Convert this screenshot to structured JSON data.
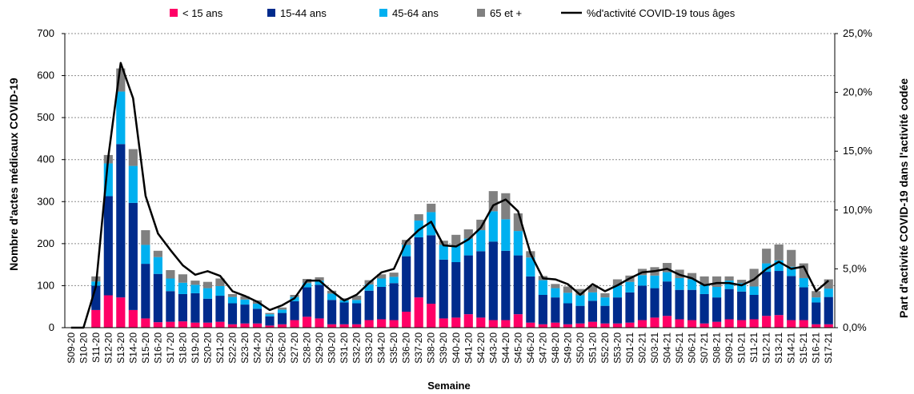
{
  "chart_data": {
    "type": "bar",
    "stacked": true,
    "xlabel": "Semaine",
    "ylabel": "Nombre d'actes médicaux COVID-19",
    "y2label": "Part d'activité COVID-19 dans l'activité codée",
    "ylim": [
      0,
      700
    ],
    "yticks": [
      0,
      100,
      200,
      300,
      400,
      500,
      600,
      700
    ],
    "y2lim": [
      0,
      25
    ],
    "y2ticks": [
      "0,0%",
      "5,0%",
      "10,0%",
      "15,0%",
      "20,0%",
      "25,0%"
    ],
    "grid": true,
    "legend_position": "top",
    "categories": [
      "S09-20",
      "S10-20",
      "S11-20",
      "S12-20",
      "S13-20",
      "S14-20",
      "S15-20",
      "S16-20",
      "S17-20",
      "S18-20",
      "S19-20",
      "S20-20",
      "S21-20",
      "S22-20",
      "S23-20",
      "S24-20",
      "S25-20",
      "S26-20",
      "S27-20",
      "S28-20",
      "S29-20",
      "S30-20",
      "S31-20",
      "S32-20",
      "S33-20",
      "S34-20",
      "S35-20",
      "S36-20",
      "S37-20",
      "S38-20",
      "S39-20",
      "S40-20",
      "S41-20",
      "S42-20",
      "S43-20",
      "S44-20",
      "S45-20",
      "S46-20",
      "S47-20",
      "S48-20",
      "S49-20",
      "S50-20",
      "S51-20",
      "S52-20",
      "S53-20",
      "S01-21",
      "S02-21",
      "S03-21",
      "S04-21",
      "S05-21",
      "S06-21",
      "S07-21",
      "S08-21",
      "S09-21",
      "S10-21",
      "S11-21",
      "S12-21",
      "S13-21",
      "S14-21",
      "S15-21",
      "S16-21",
      "S17-21"
    ],
    "series": [
      {
        "name": "< 15 ans",
        "color": "#ff0066",
        "values": [
          0,
          0,
          42,
          77,
          72,
          42,
          22,
          13,
          14,
          15,
          12,
          12,
          14,
          8,
          10,
          10,
          5,
          8,
          18,
          26,
          22,
          8,
          8,
          8,
          18,
          20,
          18,
          38,
          72,
          57,
          22,
          24,
          32,
          24,
          18,
          18,
          32,
          12,
          8,
          12,
          8,
          10,
          14,
          10,
          10,
          12,
          18,
          24,
          28,
          20,
          18,
          10,
          14,
          20,
          18,
          20,
          28,
          30,
          18,
          18,
          8,
          8
        ]
      },
      {
        "name": "15-44 ans",
        "color": "#002b8c",
        "values": [
          0,
          0,
          58,
          236,
          365,
          255,
          130,
          115,
          73,
          65,
          70,
          57,
          62,
          50,
          45,
          35,
          22,
          27,
          45,
          70,
          80,
          58,
          52,
          50,
          70,
          77,
          88,
          132,
          143,
          163,
          140,
          132,
          140,
          158,
          187,
          165,
          140,
          110,
          70,
          60,
          50,
          42,
          50,
          42,
          62,
          72,
          82,
          70,
          82,
          70,
          72,
          70,
          58,
          72,
          68,
          58,
          105,
          105,
          105,
          78,
          52,
          65
        ]
      },
      {
        "name": "45-64 ans",
        "color": "#00b0f0",
        "values": [
          0,
          0,
          10,
          78,
          125,
          88,
          45,
          40,
          30,
          27,
          20,
          25,
          23,
          15,
          12,
          12,
          5,
          8,
          10,
          10,
          10,
          15,
          5,
          8,
          15,
          20,
          15,
          27,
          40,
          55,
          35,
          40,
          40,
          50,
          72,
          75,
          58,
          45,
          35,
          22,
          25,
          25,
          20,
          20,
          28,
          25,
          25,
          30,
          22,
          28,
          25,
          22,
          25,
          20,
          20,
          20,
          20,
          25,
          22,
          22,
          12,
          20
        ]
      },
      {
        "name": "65 et +",
        "color": "#808080",
        "values": [
          0,
          0,
          12,
          20,
          55,
          40,
          35,
          15,
          20,
          20,
          10,
          15,
          18,
          7,
          8,
          8,
          3,
          5,
          5,
          10,
          8,
          7,
          5,
          10,
          10,
          10,
          10,
          12,
          15,
          20,
          10,
          25,
          22,
          25,
          48,
          62,
          42,
          15,
          10,
          10,
          15,
          15,
          15,
          10,
          15,
          15,
          15,
          20,
          22,
          20,
          15,
          20,
          25,
          10,
          8,
          42,
          35,
          38,
          40,
          35,
          15,
          22
        ]
      }
    ],
    "line": {
      "name": "%d'activité COVID-19 tous âges",
      "color": "#000000",
      "values": [
        0.0,
        0.0,
        3.5,
        14.5,
        22.5,
        19.5,
        11.2,
        8.0,
        6.6,
        5.3,
        4.5,
        4.8,
        4.4,
        3.1,
        2.7,
        2.2,
        1.5,
        1.9,
        2.5,
        4.0,
        4.0,
        3.1,
        2.3,
        2.8,
        3.8,
        4.7,
        5.0,
        7.3,
        8.3,
        9.0,
        7.0,
        6.9,
        7.5,
        8.5,
        10.4,
        10.9,
        9.9,
        6.3,
        4.2,
        4.1,
        3.7,
        2.8,
        3.7,
        3.1,
        3.6,
        4.2,
        4.7,
        4.8,
        5.0,
        4.5,
        4.2,
        3.6,
        3.8,
        3.8,
        3.6,
        4.1,
        5.0,
        5.6,
        5.0,
        5.2,
        3.1,
        4.0
      ]
    }
  }
}
